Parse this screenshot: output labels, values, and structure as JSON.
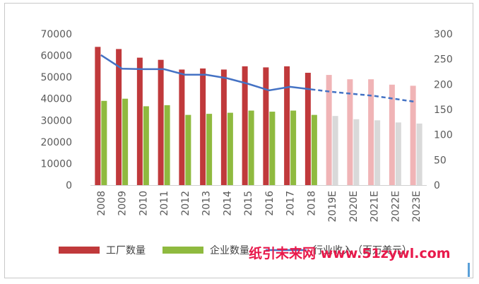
{
  "chart_data": {
    "type": "bar",
    "categories": [
      "2008",
      "2009",
      "2010",
      "2011",
      "2012",
      "2013",
      "2014",
      "2015",
      "2016",
      "2017",
      "2018",
      "2019E",
      "2020E",
      "2021E",
      "2022E",
      "2023E"
    ],
    "series": [
      {
        "name": "工厂数量",
        "kind": "bar",
        "axis": "left",
        "color": "#c0393b",
        "projected_color": "#f0b4b6",
        "values": [
          64000,
          63000,
          59000,
          58000,
          53500,
          54000,
          53500,
          55000,
          54500,
          55000,
          52000,
          51000,
          49000,
          49000,
          46500,
          46000
        ]
      },
      {
        "name": "企业数量",
        "kind": "bar",
        "axis": "left",
        "color": "#8fba3f",
        "projected_color": "#d9d9d9",
        "values": [
          39000,
          40000,
          36500,
          37000,
          32500,
          33000,
          33500,
          34500,
          34000,
          34500,
          32500,
          32000,
          30500,
          30000,
          29000,
          28500
        ]
      },
      {
        "name": "行业收入（百万美元）",
        "kind": "line",
        "axis": "right",
        "color": "#4472c4",
        "values": [
          258,
          231,
          230,
          230,
          219,
          219,
          212,
          201,
          188,
          195,
          190,
          185,
          181,
          177,
          171,
          165
        ]
      }
    ],
    "projected_from_index": 11,
    "left_axis": {
      "min": 0,
      "max": 70000,
      "ticks": [
        0,
        10000,
        20000,
        30000,
        40000,
        50000,
        60000,
        70000
      ]
    },
    "right_axis": {
      "min": 0,
      "max": 300,
      "ticks": [
        0,
        50,
        100,
        150,
        200,
        250,
        300
      ]
    },
    "legend": {
      "position": "bottom",
      "items": [
        "工厂数量",
        "企业数量",
        "行业收入（百万美元）"
      ]
    },
    "grid": false
  },
  "watermark": "纸引未来网 www.51zywl.com"
}
